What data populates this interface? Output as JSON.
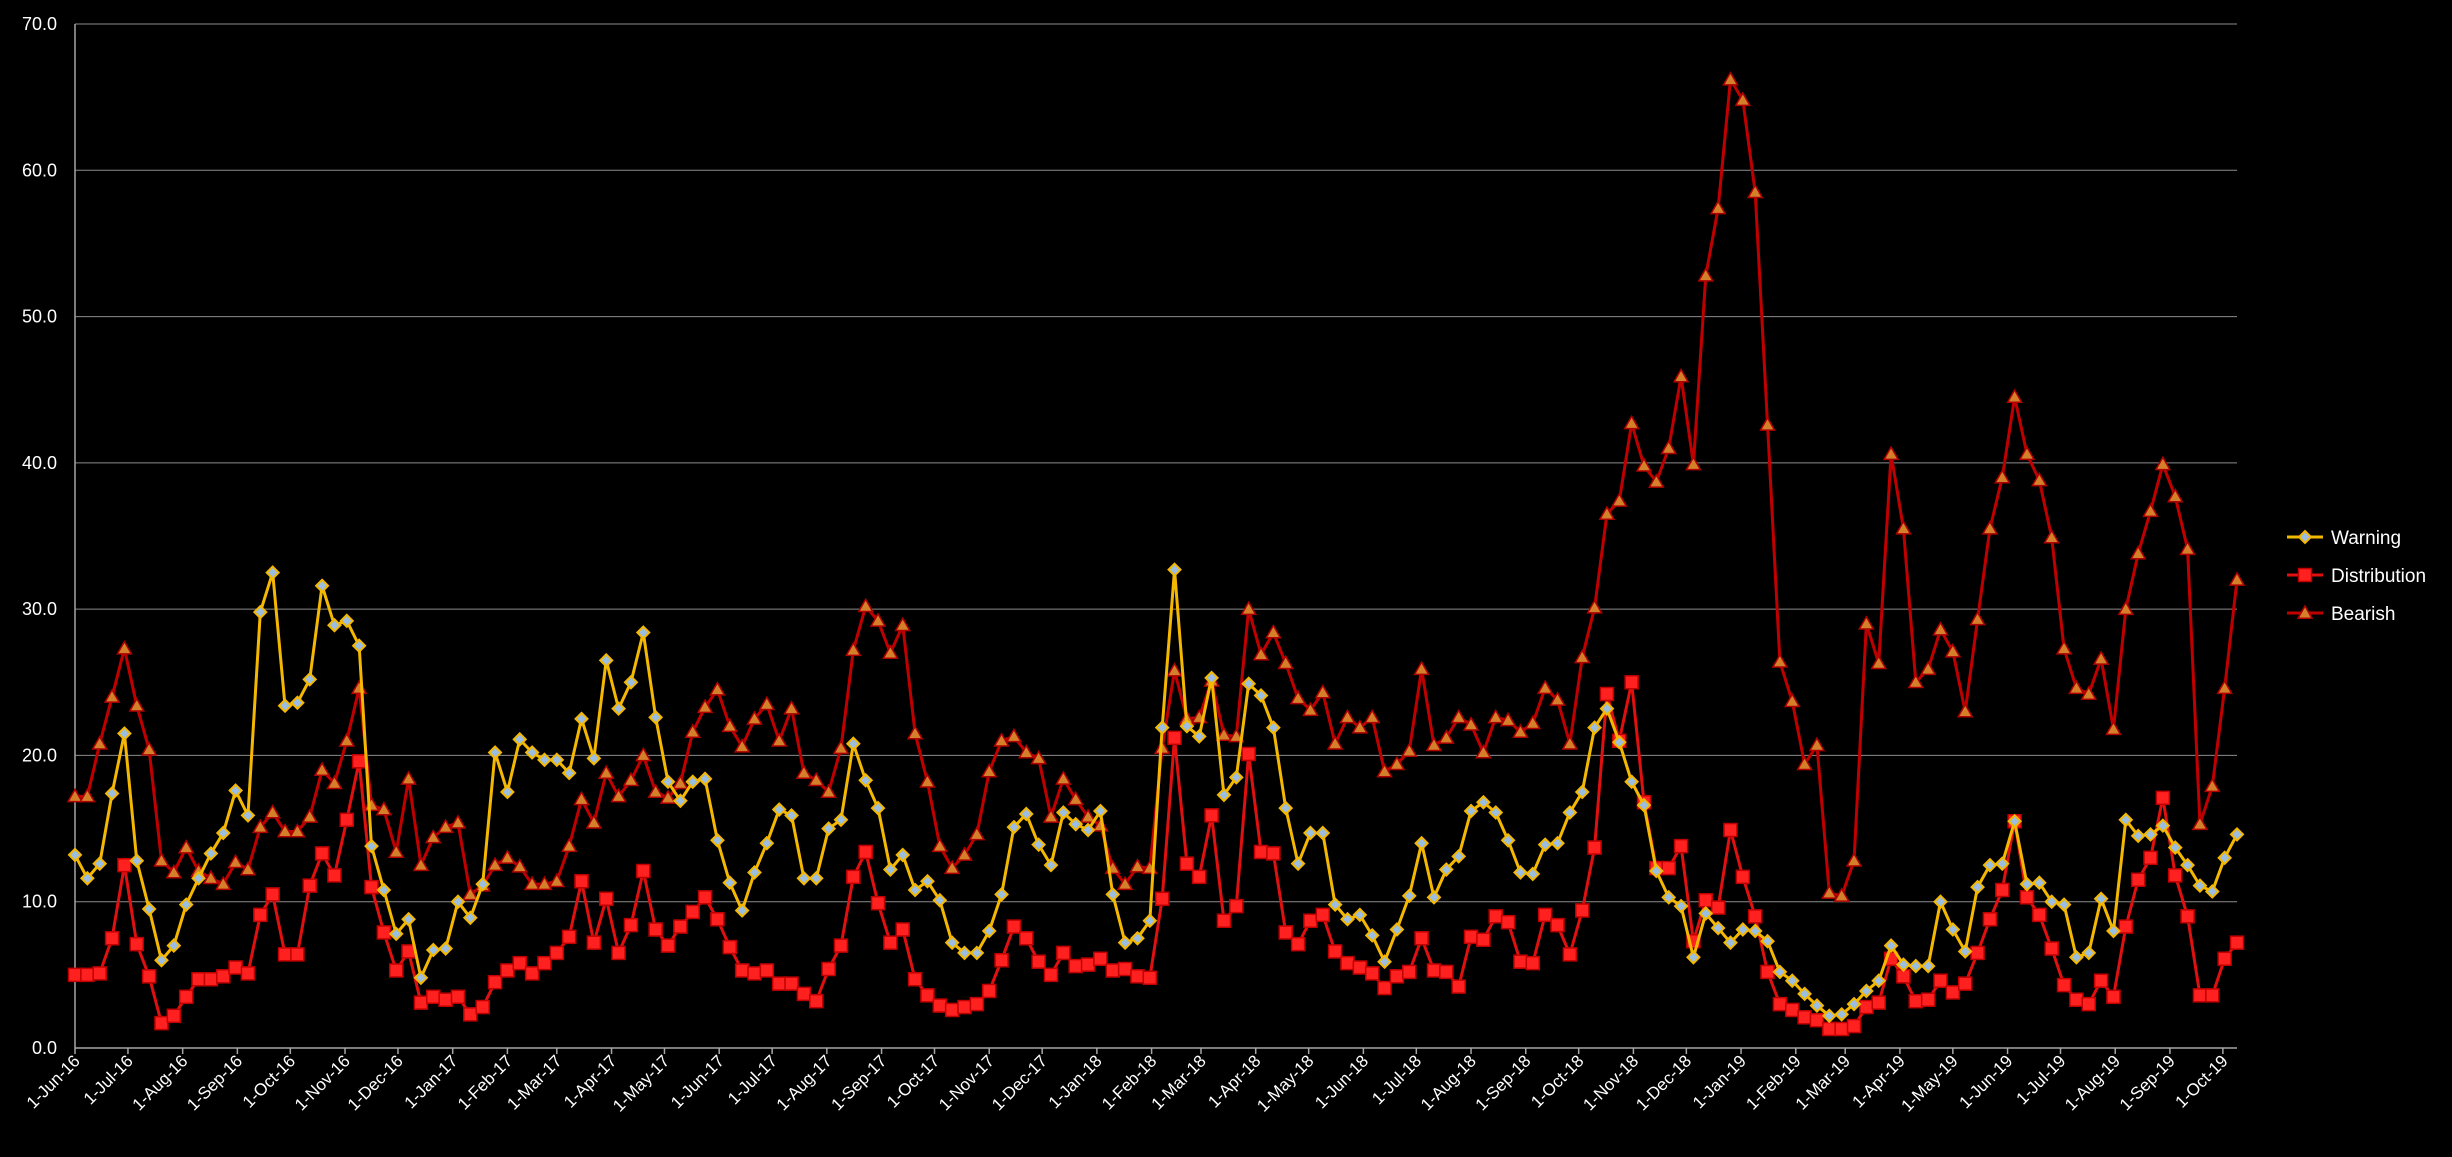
{
  "chart_data": {
    "type": "line",
    "title": "",
    "xlabel": "",
    "ylabel": "",
    "ylim": [
      0,
      70
    ],
    "y_ticks": [
      "0.0",
      "10.0",
      "20.0",
      "30.0",
      "40.0",
      "50.0",
      "60.0",
      "70.0"
    ],
    "grid": "horizontal",
    "legend_position": "right",
    "x_start_date": "2016-06-01",
    "x_tick_labels": [
      "1-Jun-16",
      "1-Jul-16",
      "1-Aug-16",
      "1-Sep-16",
      "1-Oct-16",
      "1-Nov-16",
      "1-Dec-16",
      "1-Jan-17",
      "1-Feb-17",
      "1-Mar-17",
      "1-Apr-17",
      "1-May-17",
      "1-Jun-17",
      "1-Jul-17",
      "1-Aug-17",
      "1-Sep-17",
      "1-Oct-17",
      "1-Nov-17",
      "1-Dec-17",
      "1-Jan-18",
      "1-Feb-18",
      "1-Mar-18",
      "1-Apr-18",
      "1-May-18",
      "1-Jun-18",
      "1-Jul-18",
      "1-Aug-18",
      "1-Sep-18",
      "1-Oct-18",
      "1-Nov-18",
      "1-Dec-18",
      "1-Jan-19",
      "1-Feb-19",
      "1-Mar-19",
      "1-Apr-19",
      "1-May-19",
      "1-Jun-19",
      "1-Jul-19",
      "1-Aug-19",
      "1-Sep-19",
      "1-Oct-19"
    ],
    "x_interval": "weekly",
    "series": [
      {
        "name": "Warning",
        "color": "#f5b800",
        "marker": "diamond",
        "marker_fill": "#9bbde0",
        "values": [
          13.2,
          11.6,
          12.6,
          17.4,
          21.5,
          12.8,
          9.5,
          6.0,
          7.0,
          9.8,
          11.6,
          13.3,
          14.7,
          17.6,
          15.9,
          29.8,
          32.5,
          23.4,
          23.6,
          25.2,
          31.6,
          28.9,
          29.2,
          27.5,
          13.8,
          10.8,
          7.8,
          8.8,
          4.8,
          6.7,
          6.8,
          10.0,
          8.9,
          11.2,
          20.2,
          17.5,
          21.1,
          20.2,
          19.7,
          19.7,
          18.8,
          22.5,
          19.8,
          26.5,
          23.2,
          25.0,
          28.4,
          22.6,
          18.2,
          16.9,
          18.2,
          18.4,
          14.2,
          11.3,
          9.4,
          12.0,
          14.0,
          16.3,
          15.9,
          11.6,
          11.6,
          15.0,
          15.6,
          20.8,
          18.3,
          16.4,
          12.2,
          13.2,
          10.8,
          11.4,
          10.1,
          7.2,
          6.5,
          6.5,
          8.0,
          10.5,
          15.1,
          16.0,
          13.9,
          12.5,
          16.1,
          15.3,
          14.9,
          16.2,
          10.5,
          7.2,
          7.5,
          8.7,
          21.9,
          32.7,
          22.0,
          21.3,
          25.3,
          17.3,
          18.5,
          24.9,
          24.1,
          21.9,
          16.4,
          12.6,
          14.7,
          14.7,
          9.8,
          8.8,
          9.1,
          7.7,
          5.9,
          8.1,
          10.4,
          14.0,
          10.3,
          12.2,
          13.1,
          16.2,
          16.8,
          16.1,
          14.2,
          12.0,
          11.9,
          13.9,
          14.0,
          16.1,
          17.5,
          21.9,
          23.2,
          20.9,
          18.2,
          16.6,
          12.1,
          10.3,
          9.7,
          6.2,
          9.2,
          8.2,
          7.2,
          8.1,
          8.0,
          7.3,
          5.2,
          4.6,
          3.7,
          2.9,
          2.2,
          2.3,
          3.0,
          3.9,
          4.6,
          7.0,
          5.7,
          5.6,
          5.6,
          10.0,
          8.1,
          6.6,
          11.0,
          12.5,
          12.6,
          15.5,
          11.2,
          11.3,
          10.0,
          9.8,
          6.2,
          6.5,
          10.2,
          8.0,
          15.6,
          14.5,
          14.6,
          15.2,
          13.7,
          12.5,
          11.1,
          10.7,
          13.0,
          14.6
        ]
      },
      {
        "name": "Distribution",
        "color": "#e01010",
        "marker": "square",
        "marker_fill": "#ff2020",
        "values": [
          5.0,
          5.0,
          5.1,
          7.5,
          12.5,
          7.1,
          4.9,
          1.7,
          2.2,
          3.5,
          4.7,
          4.7,
          4.9,
          5.5,
          5.1,
          9.1,
          10.5,
          6.4,
          6.4,
          11.1,
          13.3,
          11.8,
          15.6,
          19.6,
          11.0,
          7.9,
          5.3,
          6.6,
          3.1,
          3.5,
          3.3,
          3.5,
          2.3,
          2.8,
          4.5,
          5.3,
          5.8,
          5.1,
          5.8,
          6.5,
          7.6,
          11.4,
          7.2,
          10.2,
          6.5,
          8.4,
          12.1,
          8.1,
          7.0,
          8.3,
          9.3,
          10.3,
          8.8,
          6.9,
          5.3,
          5.1,
          5.3,
          4.4,
          4.4,
          3.7,
          3.2,
          5.4,
          7.0,
          11.7,
          13.4,
          9.9,
          7.2,
          8.1,
          4.7,
          3.6,
          2.9,
          2.6,
          2.8,
          3.0,
          3.9,
          6.0,
          8.3,
          7.5,
          5.9,
          5.0,
          6.5,
          5.6,
          5.7,
          6.1,
          5.3,
          5.4,
          4.9,
          4.8,
          10.2,
          21.2,
          12.6,
          11.7,
          15.9,
          8.7,
          9.7,
          20.1,
          13.4,
          13.3,
          7.9,
          7.1,
          8.7,
          9.1,
          6.6,
          5.8,
          5.5,
          5.1,
          4.1,
          4.9,
          5.2,
          7.5,
          5.3,
          5.2,
          4.2,
          7.6,
          7.4,
          9.0,
          8.6,
          5.9,
          5.8,
          9.1,
          8.4,
          6.4,
          9.4,
          13.7,
          24.2,
          21.0,
          25.0,
          16.8,
          12.3,
          12.3,
          13.8,
          7.3,
          10.1,
          9.6,
          14.9,
          11.7,
          9.0,
          5.2,
          3.0,
          2.6,
          2.1,
          1.9,
          1.3,
          1.3,
          1.5,
          2.8,
          3.1,
          6.1,
          4.9,
          3.2,
          3.3,
          4.6,
          3.8,
          4.4,
          6.5,
          8.8,
          10.8,
          15.5,
          10.3,
          9.1,
          6.8,
          4.3,
          3.3,
          3.0,
          4.6,
          3.5,
          8.3,
          11.5,
          13.0,
          17.1,
          11.8,
          9.0,
          3.6,
          3.6,
          6.1,
          7.2
        ]
      },
      {
        "name": "Bearish",
        "color": "#c00000",
        "marker": "triangle",
        "marker_fill": "#d4802a",
        "values": [
          17.2,
          17.2,
          20.8,
          24.0,
          27.3,
          23.4,
          20.4,
          12.8,
          12.0,
          13.7,
          12.1,
          11.6,
          11.2,
          12.7,
          12.2,
          15.1,
          16.1,
          14.8,
          14.8,
          15.8,
          19.0,
          18.1,
          21.0,
          24.6,
          16.6,
          16.3,
          13.4,
          18.4,
          12.5,
          14.4,
          15.1,
          15.4,
          10.5,
          11.1,
          12.5,
          13.0,
          12.4,
          11.2,
          11.2,
          11.4,
          13.8,
          17.0,
          15.4,
          18.8,
          17.2,
          18.3,
          20.0,
          17.5,
          17.1,
          18.1,
          21.6,
          23.3,
          24.5,
          22.0,
          20.6,
          22.5,
          23.5,
          21.0,
          23.2,
          18.8,
          18.3,
          17.5,
          20.5,
          27.2,
          30.2,
          29.2,
          27.0,
          28.9,
          21.5,
          18.2,
          13.8,
          12.3,
          13.2,
          14.6,
          18.9,
          21.0,
          21.3,
          20.2,
          19.8,
          15.8,
          18.4,
          17.0,
          15.8,
          15.2,
          12.3,
          11.2,
          12.4,
          12.3,
          20.5,
          25.8,
          22.5,
          22.6,
          25.1,
          21.4,
          21.3,
          30.0,
          26.9,
          28.4,
          26.3,
          23.9,
          23.1,
          24.3,
          20.8,
          22.6,
          21.9,
          22.6,
          18.9,
          19.4,
          20.3,
          25.9,
          20.7,
          21.2,
          22.6,
          22.1,
          20.2,
          22.6,
          22.4,
          21.6,
          22.2,
          24.6,
          23.8,
          20.8,
          26.7,
          30.1,
          36.5,
          37.4,
          42.7,
          39.8,
          38.7,
          41.0,
          45.9,
          39.9,
          52.8,
          57.4,
          66.2,
          64.8,
          58.5,
          42.6,
          26.4,
          23.7,
          19.4,
          20.7,
          10.6,
          10.4,
          12.8,
          29.0,
          26.3,
          40.6,
          35.5,
          25.0,
          25.9,
          28.6,
          27.1,
          23.0,
          29.3,
          35.5,
          39.0,
          44.5,
          40.6,
          38.8,
          34.9,
          27.3,
          24.6,
          24.2,
          26.6,
          21.8,
          30.0,
          33.8,
          36.7,
          39.9,
          37.7,
          34.1,
          15.3,
          17.9,
          24.6,
          32.0
        ]
      }
    ]
  }
}
